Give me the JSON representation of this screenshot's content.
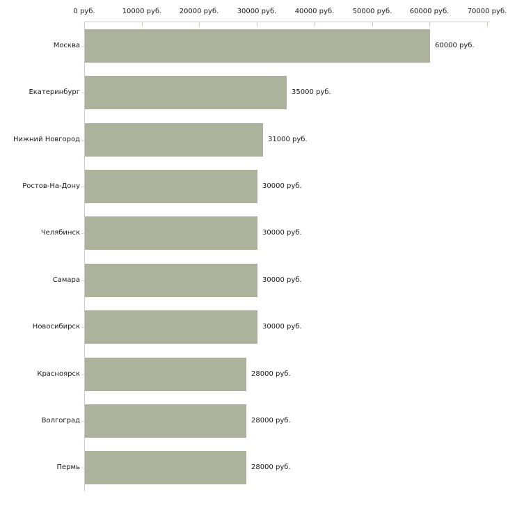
{
  "chart_data": {
    "type": "bar",
    "orientation": "horizontal",
    "title": "",
    "xlabel": "",
    "ylabel": "",
    "categories": [
      "Москва",
      "Екатеринбург",
      "Нижний Новгород",
      "Ростов-На-Дону",
      "Челябинск",
      "Самара",
      "Новосибирск",
      "Красноярск",
      "Волгоград",
      "Пермь"
    ],
    "values": [
      60000,
      35000,
      31000,
      30000,
      30000,
      30000,
      30000,
      28000,
      28000,
      28000
    ],
    "value_labels": [
      "60000 руб.",
      "35000 руб.",
      "31000 руб.",
      "30000 руб.",
      "30000 руб.",
      "30000 руб.",
      "30000 руб.",
      "28000 руб.",
      "28000 руб.",
      "28000 руб."
    ],
    "x_axis": {
      "position": "top",
      "min": 0,
      "max": 70000,
      "tick_values": [
        0,
        10000,
        20000,
        30000,
        40000,
        50000,
        60000,
        70000
      ],
      "tick_labels": [
        "0 руб.",
        "10000 руб.",
        "20000 руб.",
        "30000 руб.",
        "40000 руб.",
        "50000 руб.",
        "60000 руб.",
        "70000 руб."
      ]
    },
    "grid": false,
    "legend": false,
    "colors": {
      "bar": "#acb29c",
      "axis": "#cbcbb8",
      "text": "#1a1a1a",
      "background": "#ffffff"
    }
  }
}
